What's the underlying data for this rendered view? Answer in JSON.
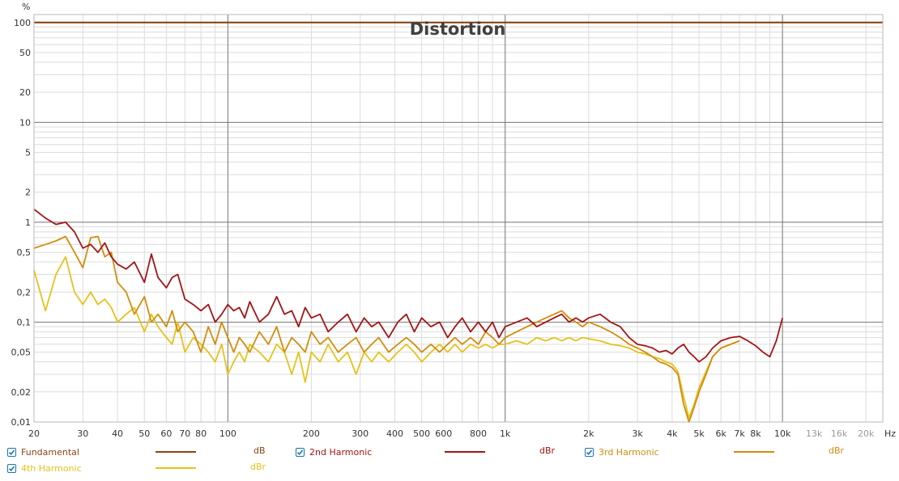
{
  "chart_data": {
    "type": "line",
    "title": "Distortion",
    "ylabel": "%",
    "xlabel": "",
    "x_scale": "log",
    "y_scale": "log",
    "xlim": [
      20,
      23000
    ],
    "ylim": [
      0.01,
      120
    ],
    "grid": true,
    "x_ticks": [
      {
        "v": 20,
        "l": "20"
      },
      {
        "v": 30,
        "l": "30"
      },
      {
        "v": 40,
        "l": "40"
      },
      {
        "v": 50,
        "l": "50"
      },
      {
        "v": 60,
        "l": "60"
      },
      {
        "v": 70,
        "l": "70"
      },
      {
        "v": 80,
        "l": "80"
      },
      {
        "v": 100,
        "l": "100"
      },
      {
        "v": 200,
        "l": "200"
      },
      {
        "v": 300,
        "l": "300"
      },
      {
        "v": 400,
        "l": "400"
      },
      {
        "v": 500,
        "l": "500"
      },
      {
        "v": 600,
        "l": "600"
      },
      {
        "v": 800,
        "l": "800"
      },
      {
        "v": 1000,
        "l": "1k"
      },
      {
        "v": 2000,
        "l": "2k"
      },
      {
        "v": 3000,
        "l": "3k"
      },
      {
        "v": 4000,
        "l": "4k"
      },
      {
        "v": 5000,
        "l": "5k"
      },
      {
        "v": 6000,
        "l": "6k"
      },
      {
        "v": 7000,
        "l": "7k"
      },
      {
        "v": 8000,
        "l": "8k"
      },
      {
        "v": 10000,
        "l": "10k"
      },
      {
        "v": 13000,
        "l": "13k"
      },
      {
        "v": 16000,
        "l": "16k"
      },
      {
        "v": 20000,
        "l": "20k"
      }
    ],
    "x_unit_label": "Hz",
    "y_ticks": [
      {
        "v": 0.01,
        "l": "0,01"
      },
      {
        "v": 0.02,
        "l": "0,02"
      },
      {
        "v": 0.05,
        "l": "0,05"
      },
      {
        "v": 0.1,
        "l": "0,1"
      },
      {
        "v": 0.2,
        "l": "0,2"
      },
      {
        "v": 0.5,
        "l": "0,5"
      },
      {
        "v": 1,
        "l": "1"
      },
      {
        "v": 2,
        "l": "2"
      },
      {
        "v": 5,
        "l": "5"
      },
      {
        "v": 10,
        "l": "10"
      },
      {
        "v": 20,
        "l": "20"
      },
      {
        "v": 50,
        "l": "50"
      },
      {
        "v": 100,
        "l": "100"
      }
    ],
    "series": [
      {
        "name": "Fundamental",
        "unit": "dB",
        "color": "#8b4513",
        "checked": true,
        "x": [
          20,
          23000
        ],
        "y": [
          100,
          100
        ]
      },
      {
        "name": "2nd Harmonic",
        "unit": "dBr",
        "color": "#a31515",
        "checked": true,
        "x": [
          20,
          22,
          24,
          26,
          28,
          30,
          32,
          34,
          36,
          38,
          40,
          43,
          46,
          50,
          53,
          56,
          60,
          63,
          66,
          70,
          75,
          80,
          85,
          90,
          95,
          100,
          105,
          110,
          115,
          120,
          130,
          140,
          150,
          160,
          170,
          180,
          190,
          200,
          215,
          230,
          250,
          270,
          290,
          310,
          330,
          350,
          380,
          410,
          440,
          470,
          500,
          540,
          580,
          620,
          660,
          700,
          750,
          800,
          850,
          900,
          950,
          1000,
          1100,
          1200,
          1300,
          1400,
          1500,
          1600,
          1700,
          1800,
          1900,
          2000,
          2200,
          2400,
          2600,
          2800,
          3000,
          3200,
          3400,
          3600,
          3800,
          4000,
          4200,
          4400,
          4600,
          4800,
          5000,
          5300,
          5600,
          6000,
          6500,
          7000,
          7500,
          8000,
          8500,
          9000,
          9500,
          10000
        ],
        "y": [
          1.35,
          1.1,
          0.95,
          1.0,
          0.8,
          0.55,
          0.6,
          0.5,
          0.62,
          0.45,
          0.38,
          0.34,
          0.4,
          0.25,
          0.48,
          0.28,
          0.22,
          0.28,
          0.3,
          0.17,
          0.15,
          0.13,
          0.15,
          0.1,
          0.12,
          0.15,
          0.13,
          0.14,
          0.11,
          0.16,
          0.1,
          0.12,
          0.18,
          0.12,
          0.13,
          0.09,
          0.14,
          0.11,
          0.12,
          0.08,
          0.1,
          0.12,
          0.08,
          0.11,
          0.09,
          0.1,
          0.07,
          0.1,
          0.12,
          0.08,
          0.11,
          0.09,
          0.1,
          0.07,
          0.09,
          0.11,
          0.08,
          0.1,
          0.08,
          0.1,
          0.07,
          0.09,
          0.1,
          0.11,
          0.09,
          0.1,
          0.11,
          0.12,
          0.1,
          0.11,
          0.1,
          0.11,
          0.12,
          0.1,
          0.09,
          0.07,
          0.06,
          0.058,
          0.055,
          0.05,
          0.052,
          0.048,
          0.055,
          0.06,
          0.05,
          0.045,
          0.04,
          0.045,
          0.055,
          0.065,
          0.07,
          0.072,
          0.065,
          0.058,
          0.05,
          0.045,
          0.065,
          0.11
        ]
      },
      {
        "name": "3rd Harmonic",
        "unit": "dBr",
        "color": "#d18e0c",
        "checked": true,
        "x": [
          20,
          22,
          24,
          26,
          28,
          30,
          32,
          34,
          36,
          38,
          40,
          43,
          46,
          50,
          53,
          56,
          60,
          63,
          66,
          70,
          75,
          80,
          85,
          90,
          95,
          100,
          105,
          110,
          115,
          120,
          130,
          140,
          150,
          160,
          170,
          180,
          190,
          200,
          215,
          230,
          250,
          270,
          290,
          310,
          330,
          350,
          380,
          410,
          440,
          470,
          500,
          540,
          580,
          620,
          660,
          700,
          750,
          800,
          850,
          900,
          950,
          1000,
          1100,
          1200,
          1300,
          1400,
          1500,
          1600,
          1700,
          1800,
          1900,
          2000,
          2200,
          2400,
          2600,
          2800,
          3000,
          3200,
          3400,
          3600,
          3800,
          4000,
          4200,
          4400,
          4600,
          4800,
          5000,
          5300,
          5600,
          6000,
          6500,
          7000
        ],
        "y": [
          0.55,
          0.6,
          0.65,
          0.72,
          0.5,
          0.35,
          0.7,
          0.72,
          0.45,
          0.5,
          0.25,
          0.2,
          0.12,
          0.18,
          0.1,
          0.12,
          0.09,
          0.13,
          0.08,
          0.1,
          0.08,
          0.05,
          0.09,
          0.06,
          0.1,
          0.07,
          0.05,
          0.07,
          0.06,
          0.05,
          0.08,
          0.06,
          0.09,
          0.05,
          0.07,
          0.06,
          0.05,
          0.08,
          0.06,
          0.07,
          0.05,
          0.06,
          0.07,
          0.05,
          0.06,
          0.07,
          0.05,
          0.06,
          0.07,
          0.06,
          0.05,
          0.06,
          0.05,
          0.06,
          0.07,
          0.06,
          0.07,
          0.06,
          0.08,
          0.07,
          0.06,
          0.07,
          0.08,
          0.09,
          0.1,
          0.11,
          0.12,
          0.13,
          0.11,
          0.1,
          0.09,
          0.1,
          0.09,
          0.08,
          0.07,
          0.06,
          0.055,
          0.05,
          0.045,
          0.04,
          0.038,
          0.035,
          0.03,
          0.015,
          0.01,
          0.014,
          0.02,
          0.03,
          0.045,
          0.055,
          0.06,
          0.065
        ]
      },
      {
        "name": "4th Harmonic",
        "unit": "dBr",
        "color": "#e6c21a",
        "checked": true,
        "x": [
          20,
          22,
          24,
          26,
          28,
          30,
          32,
          34,
          36,
          38,
          40,
          43,
          46,
          50,
          53,
          56,
          60,
          63,
          66,
          70,
          75,
          80,
          85,
          90,
          95,
          100,
          105,
          110,
          115,
          120,
          130,
          140,
          150,
          160,
          170,
          180,
          190,
          200,
          215,
          230,
          250,
          270,
          290,
          310,
          330,
          350,
          380,
          410,
          440,
          470,
          500,
          540,
          580,
          620,
          660,
          700,
          750,
          800,
          850,
          900,
          950,
          1000,
          1100,
          1200,
          1300,
          1400,
          1500,
          1600,
          1700,
          1800,
          1900,
          2000,
          2200,
          2400,
          2600,
          2800,
          3000,
          3200,
          3400,
          3600,
          3800,
          4000,
          4200,
          4400,
          4600,
          4800,
          5000,
          5300,
          5600,
          6000,
          6500,
          7000
        ],
        "y": [
          0.33,
          0.13,
          0.3,
          0.45,
          0.2,
          0.15,
          0.2,
          0.15,
          0.17,
          0.14,
          0.1,
          0.12,
          0.14,
          0.08,
          0.12,
          0.09,
          0.07,
          0.06,
          0.1,
          0.05,
          0.07,
          0.06,
          0.05,
          0.04,
          0.06,
          0.03,
          0.04,
          0.05,
          0.04,
          0.06,
          0.05,
          0.04,
          0.06,
          0.05,
          0.03,
          0.05,
          0.025,
          0.05,
          0.04,
          0.06,
          0.04,
          0.05,
          0.03,
          0.05,
          0.04,
          0.05,
          0.04,
          0.05,
          0.06,
          0.05,
          0.04,
          0.05,
          0.06,
          0.05,
          0.06,
          0.05,
          0.06,
          0.055,
          0.06,
          0.055,
          0.06,
          0.06,
          0.065,
          0.06,
          0.07,
          0.065,
          0.07,
          0.065,
          0.07,
          0.065,
          0.07,
          0.068,
          0.065,
          0.06,
          0.058,
          0.055,
          0.05,
          0.048,
          0.045,
          0.043,
          0.04,
          0.038,
          0.032,
          0.018,
          0.011,
          0.015,
          0.022,
          0.032,
          0.045,
          0.055,
          0.06,
          0.065
        ]
      }
    ]
  },
  "legend": {
    "items": [
      {
        "name": "Fundamental",
        "unit": "dB",
        "color": "#8b4513",
        "checked": true
      },
      {
        "name": "2nd Harmonic",
        "unit": "dBr",
        "color": "#a31515",
        "checked": true
      },
      {
        "name": "3rd Harmonic",
        "unit": "dBr",
        "color": "#d18e0c",
        "checked": true
      },
      {
        "name": "4th Harmonic",
        "unit": "dBr",
        "color": "#e6c21a",
        "checked": true
      }
    ]
  }
}
